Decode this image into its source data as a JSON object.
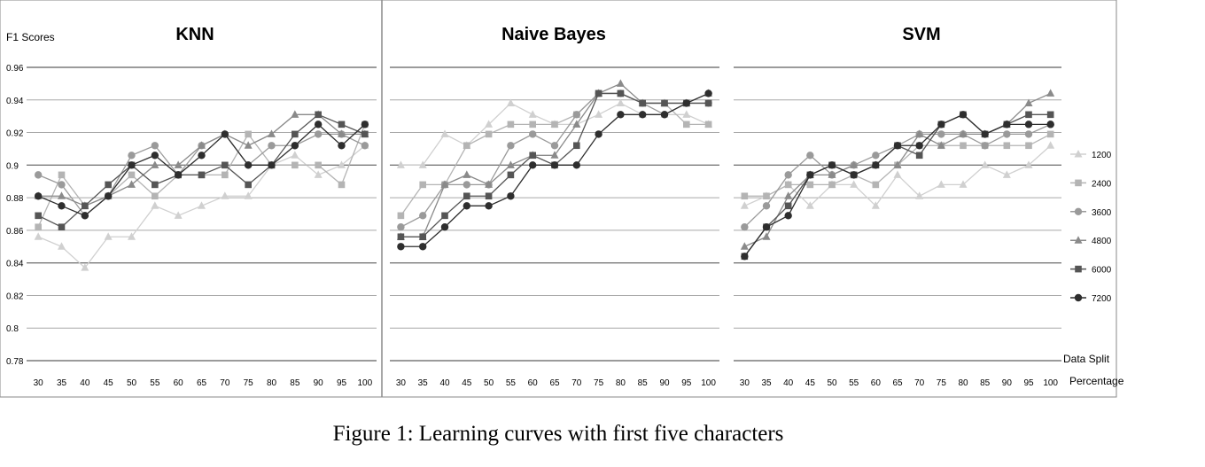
{
  "caption": "Figure 1: Learning curves with first five characters",
  "y_axis_label": "F1 Scores",
  "x_axis_label_line1": "Data Split",
  "x_axis_label_line2": "Percentage",
  "chart_data": [
    {
      "type": "line",
      "title": "KNN",
      "categories": [
        30,
        35,
        40,
        45,
        50,
        55,
        60,
        65,
        70,
        75,
        80,
        85,
        90,
        95,
        100
      ],
      "ylim": [
        0.78,
        0.96
      ],
      "yticks": [
        "0.78",
        "0.8",
        "0.82",
        "0.84",
        "0.86",
        "0.88",
        "0.9",
        "0.92",
        "0.94",
        "0.96"
      ],
      "grid": true,
      "series": [
        {
          "name": "1200",
          "values": [
            0.856,
            0.85,
            0.837,
            0.856,
            0.856,
            0.875,
            0.869,
            0.875,
            0.881,
            0.881,
            0.9,
            0.906,
            0.894,
            0.9,
            0.912
          ]
        },
        {
          "name": "2400",
          "values": [
            0.862,
            0.894,
            0.875,
            0.881,
            0.894,
            0.881,
            0.894,
            0.894,
            0.894,
            0.919,
            0.9,
            0.9,
            0.9,
            0.888,
            0.925
          ]
        },
        {
          "name": "3600",
          "values": [
            0.894,
            0.888,
            0.869,
            0.881,
            0.906,
            0.912,
            0.894,
            0.912,
            0.919,
            0.9,
            0.912,
            0.912,
            0.919,
            0.919,
            0.912
          ]
        },
        {
          "name": "4800",
          "values": [
            0.881,
            0.881,
            0.875,
            0.881,
            0.888,
            0.9,
            0.9,
            0.912,
            0.919,
            0.912,
            0.919,
            0.931,
            0.931,
            0.919,
            0.919
          ]
        },
        {
          "name": "6000",
          "values": [
            0.869,
            0.862,
            0.875,
            0.888,
            0.9,
            0.888,
            0.894,
            0.894,
            0.9,
            0.888,
            0.9,
            0.919,
            0.931,
            0.925,
            0.919
          ]
        },
        {
          "name": "7200",
          "values": [
            0.881,
            0.875,
            0.869,
            0.881,
            0.9,
            0.906,
            0.894,
            0.906,
            0.919,
            0.9,
            0.9,
            0.912,
            0.925,
            0.912,
            0.925
          ]
        }
      ]
    },
    {
      "type": "line",
      "title": "Naive Bayes",
      "categories": [
        30,
        35,
        40,
        45,
        50,
        55,
        60,
        65,
        70,
        75,
        80,
        85,
        90,
        95,
        100
      ],
      "ylim": [
        0.78,
        0.96
      ],
      "grid": true,
      "series": [
        {
          "name": "1200",
          "values": [
            0.9,
            0.9,
            0.919,
            0.912,
            0.925,
            0.938,
            0.931,
            0.925,
            0.925,
            0.931,
            0.938,
            0.931,
            0.931,
            0.931,
            0.925
          ]
        },
        {
          "name": "2400",
          "values": [
            0.869,
            0.888,
            0.888,
            0.912,
            0.919,
            0.925,
            0.925,
            0.925,
            0.931,
            0.944,
            0.944,
            0.938,
            0.938,
            0.925,
            0.925
          ]
        },
        {
          "name": "3600",
          "values": [
            0.862,
            0.869,
            0.888,
            0.888,
            0.888,
            0.912,
            0.919,
            0.912,
            0.931,
            0.944,
            0.944,
            0.938,
            0.931,
            0.938,
            0.938
          ]
        },
        {
          "name": "4800",
          "values": [
            0.856,
            0.856,
            0.888,
            0.894,
            0.888,
            0.9,
            0.906,
            0.906,
            0.925,
            0.944,
            0.95,
            0.938,
            0.938,
            0.938,
            0.944
          ]
        },
        {
          "name": "6000",
          "values": [
            0.856,
            0.856,
            0.869,
            0.881,
            0.881,
            0.894,
            0.906,
            0.9,
            0.912,
            0.944,
            0.944,
            0.938,
            0.938,
            0.938,
            0.938
          ]
        },
        {
          "name": "7200",
          "values": [
            0.85,
            0.85,
            0.862,
            0.875,
            0.875,
            0.881,
            0.9,
            0.9,
            0.9,
            0.919,
            0.931,
            0.931,
            0.931,
            0.938,
            0.944
          ]
        }
      ]
    },
    {
      "type": "line",
      "title": "SVM",
      "categories": [
        30,
        35,
        40,
        45,
        50,
        55,
        60,
        65,
        70,
        75,
        80,
        85,
        90,
        95,
        100
      ],
      "ylim": [
        0.78,
        0.96
      ],
      "grid": true,
      "legend": "right",
      "series": [
        {
          "name": "1200",
          "values": [
            0.875,
            0.881,
            0.888,
            0.875,
            0.888,
            0.888,
            0.875,
            0.894,
            0.881,
            0.888,
            0.888,
            0.9,
            0.894,
            0.9,
            0.912
          ]
        },
        {
          "name": "2400",
          "values": [
            0.881,
            0.881,
            0.888,
            0.888,
            0.888,
            0.894,
            0.888,
            0.9,
            0.912,
            0.912,
            0.912,
            0.912,
            0.912,
            0.912,
            0.919
          ]
        },
        {
          "name": "3600",
          "values": [
            0.862,
            0.875,
            0.894,
            0.906,
            0.894,
            0.9,
            0.906,
            0.912,
            0.919,
            0.919,
            0.919,
            0.912,
            0.919,
            0.919,
            0.925
          ]
        },
        {
          "name": "4800",
          "values": [
            0.85,
            0.856,
            0.881,
            0.894,
            0.894,
            0.9,
            0.9,
            0.9,
            0.919,
            0.912,
            0.919,
            0.919,
            0.925,
            0.938,
            0.944
          ]
        },
        {
          "name": "6000",
          "values": [
            0.844,
            0.862,
            0.875,
            0.894,
            0.9,
            0.894,
            0.9,
            0.912,
            0.906,
            0.925,
            0.931,
            0.919,
            0.925,
            0.931,
            0.931
          ]
        },
        {
          "name": "7200",
          "values": [
            0.844,
            0.862,
            0.869,
            0.894,
            0.9,
            0.894,
            0.9,
            0.912,
            0.912,
            0.925,
            0.931,
            0.919,
            0.925,
            0.925,
            0.925
          ]
        }
      ]
    }
  ],
  "series_style": {
    "1200": {
      "color": "#d0d0d0",
      "marker": "triangle"
    },
    "2400": {
      "color": "#b4b4b4",
      "marker": "square"
    },
    "3600": {
      "color": "#9a9a9a",
      "marker": "circle"
    },
    "4800": {
      "color": "#8a8a8a",
      "marker": "triangle"
    },
    "6000": {
      "color": "#555555",
      "marker": "square"
    },
    "7200": {
      "color": "#2e2e2e",
      "marker": "circle"
    }
  }
}
